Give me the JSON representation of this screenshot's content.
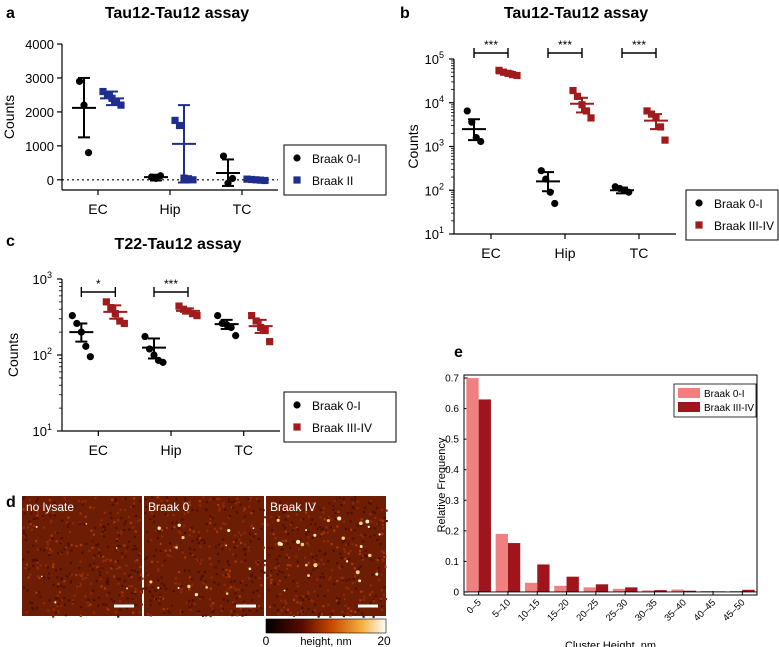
{
  "panels": {
    "a": {
      "label": "a"
    },
    "b": {
      "label": "b"
    },
    "c": {
      "label": "c"
    },
    "d": {
      "label": "d",
      "images": [
        {
          "label": "no lysate",
          "intensity": 0.2
        },
        {
          "label": "Braak 0",
          "intensity": 0.55
        },
        {
          "label": "Braak IV",
          "intensity": 0.85
        }
      ],
      "colorbar": {
        "min": "0",
        "max": "20",
        "label": "height, nm"
      }
    },
    "e": {
      "label": "e"
    }
  },
  "chart_data": [
    {
      "id": "a",
      "type": "scatter",
      "title": "Tau12-Tau12 assay",
      "xlabel": "",
      "ylabel": "Counts",
      "categories": [
        "EC",
        "Hip",
        "TC"
      ],
      "ylim": [
        -300,
        4000
      ],
      "yticks": [
        "0",
        "1000",
        "2000",
        "3000",
        "4000"
      ],
      "zero_line": "dotted",
      "legend": "right",
      "series": [
        {
          "name": "Braak 0-I",
          "color": "#000000",
          "marker": "circle",
          "points": [
            [
              2900,
              2200,
              800
            ],
            [
              80,
              40,
              120
            ],
            [
              700,
              -100,
              40
            ]
          ],
          "mean": [
            2120,
            80,
            200
          ],
          "err": [
            [
              1250,
              3000
            ],
            [
              -20,
              150
            ],
            [
              -180,
              600
            ]
          ]
        },
        {
          "name": "Braak II",
          "color": "#1f2d8c",
          "marker": "square",
          "points": [
            [
              2600,
              2500,
              2400,
              2300,
              2200
            ],
            [
              1750,
              1600,
              50,
              30,
              0
            ],
            [
              20,
              10,
              0,
              -10,
              -20
            ]
          ],
          "mean": [
            2400,
            1060,
            0
          ],
          "err": [
            [
              2200,
              2600
            ],
            [
              -80,
              2200
            ],
            [
              -40,
              40
            ]
          ]
        }
      ]
    },
    {
      "id": "b",
      "type": "scatter",
      "title": "Tau12-Tau12 assay",
      "xlabel": "",
      "ylabel": "Counts",
      "yscale": "log",
      "categories": [
        "EC",
        "Hip",
        "TC"
      ],
      "ylim": [
        10,
        100000
      ],
      "yticks": [
        "10",
        "100",
        "1000",
        "10000",
        "100000"
      ],
      "ytick_labels": [
        "10",
        "10",
        "10",
        "10",
        "10"
      ],
      "ytick_exponents": [
        "1",
        "2",
        "3",
        "4",
        "5"
      ],
      "legend": "right",
      "significance": [
        "***",
        "***",
        "***"
      ],
      "series": [
        {
          "name": "Braak 0-I",
          "color": "#000000",
          "marker": "circle",
          "points": [
            [
              6500,
              3600,
              1600,
              1300
            ],
            [
              280,
              180,
              90,
              50
            ],
            [
              120,
              110,
              100,
              90
            ]
          ],
          "mean": [
            2500,
            160,
            100
          ],
          "err": [
            [
              1400,
              4200
            ],
            [
              95,
              260
            ],
            [
              85,
              115
            ]
          ]
        },
        {
          "name": "Braak III-IV",
          "color": "#a01c1c",
          "marker": "square",
          "points": [
            [
              55000,
              50000,
              47000,
              44000,
              42000
            ],
            [
              19000,
              14000,
              9000,
              6500,
              4500
            ],
            [
              6500,
              5500,
              4500,
              2800,
              1400
            ]
          ],
          "mean": [
            47000,
            9500,
            3900
          ],
          "err": [
            [
              44000,
              52000
            ],
            [
              6000,
              13000
            ],
            [
              2500,
              5500
            ]
          ]
        }
      ]
    },
    {
      "id": "c",
      "type": "scatter",
      "title": "T22-Tau12 assay",
      "xlabel": "",
      "ylabel": "Counts",
      "yscale": "log",
      "categories": [
        "EC",
        "Hip",
        "TC"
      ],
      "ylim": [
        10,
        1000
      ],
      "yticks": [
        "10",
        "100",
        "1000"
      ],
      "ytick_labels": [
        "10",
        "10",
        "10"
      ],
      "ytick_exponents": [
        "1",
        "2",
        "3"
      ],
      "legend": "right",
      "significance": [
        "*",
        "***",
        ""
      ],
      "series": [
        {
          "name": "Braak 0-I",
          "color": "#000000",
          "marker": "circle",
          "points": [
            [
              330,
              260,
              200,
              130,
              95
            ],
            [
              175,
              120,
              100,
              85,
              80
            ],
            [
              330,
              260,
              250,
              230,
              180
            ]
          ],
          "mean": [
            200,
            125,
            255
          ],
          "err": [
            [
              150,
              260
            ],
            [
              90,
              165
            ],
            [
              220,
              290
            ]
          ]
        },
        {
          "name": "Braak III-IV",
          "color": "#a01c1c",
          "marker": "square",
          "points": [
            [
              500,
              420,
              350,
              280,
              260
            ],
            [
              440,
              400,
              380,
              350,
              330
            ],
            [
              330,
              280,
              230,
              210,
              150
            ]
          ],
          "mean": [
            370,
            380,
            240
          ],
          "err": [
            [
              300,
              450
            ],
            [
              350,
              410
            ],
            [
              195,
              290
            ]
          ]
        }
      ]
    },
    {
      "id": "e",
      "type": "bar",
      "title": "",
      "xlabel": "Cluster Height, nm",
      "ylabel": "Relative Frequency",
      "categories": [
        "0–5",
        "5–10",
        "10–15",
        "15–20",
        "20–25",
        "25–30",
        "30–35",
        "35–40",
        "40–45",
        "45–50"
      ],
      "ylim": [
        -0.01,
        0.71
      ],
      "yticks": [
        "0",
        "0.1",
        "0.2",
        "0.3",
        "0.4",
        "0.5",
        "0.6",
        "0.7"
      ],
      "legend": "top-right",
      "series": [
        {
          "name": "Braak 0-I",
          "color": "#f08080",
          "values": [
            0.7,
            0.19,
            0.03,
            0.02,
            0.015,
            0.01,
            0.005,
            0.008,
            0.003,
            0.003
          ]
        },
        {
          "name": "Braak III-IV",
          "color": "#a0141e",
          "values": [
            0.63,
            0.16,
            0.09,
            0.05,
            0.025,
            0.015,
            0.006,
            0.004,
            0.002,
            0.007
          ]
        }
      ]
    }
  ]
}
